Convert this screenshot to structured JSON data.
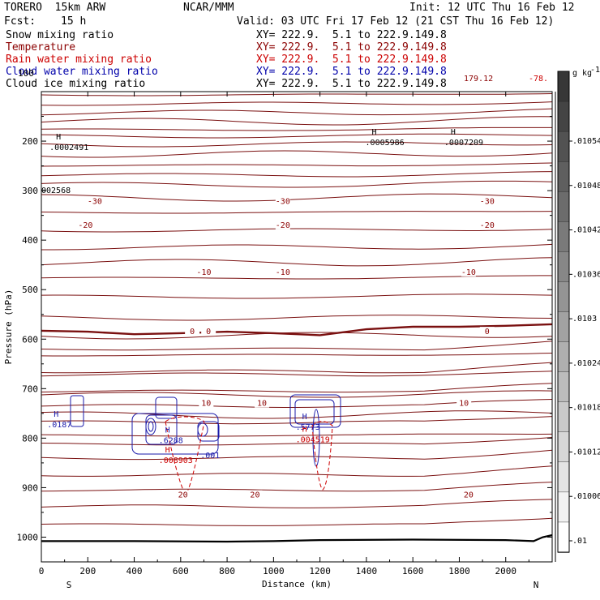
{
  "header": {
    "model": "TORERO  15km ARW",
    "org": "NCAR/MMM",
    "init": "Init: 12 UTC Thu 16 Feb 12",
    "fcst_label": "Fcst:",
    "fcst_value": "15 h",
    "valid": "Valid: 03 UTC Fri 17 Feb 12 (21 CST Thu 16 Feb 12)"
  },
  "fields": [
    {
      "name": "Snow mixing ratio",
      "color": "#000000",
      "xy": "XY= 222.9.  5.1 to 222.9.149.8"
    },
    {
      "name": "Temperature",
      "color": "#8b0000",
      "xy": "XY= 222.9.  5.1 to 222.9.149.8"
    },
    {
      "name": "Rain water mixing ratio",
      "color": "#cc0000",
      "xy": "XY= 222.9.  5.1 to 222.9.149.8"
    },
    {
      "name": "Cloud water mixing ratio",
      "color": "#0000aa",
      "xy": "XY= 222.9.  5.1 to 222.9.149.8"
    },
    {
      "name": "Cloud ice mixing ratio",
      "color": "#000000",
      "xy": "XY= 222.9.  5.1 to 222.9.149.8"
    }
  ],
  "chart_data": {
    "type": "cross-section contour",
    "xlabel": "Distance (km)",
    "ylabel": "Pressure (hPa)",
    "xlim": [
      0,
      2200
    ],
    "ylim": [
      1050,
      100
    ],
    "x_ticks": [
      "0",
      "200",
      "400",
      "600",
      "800",
      "1000",
      "1200",
      "1400",
      "1600",
      "1800",
      "2000"
    ],
    "x_tick_values": [
      0,
      200,
      400,
      600,
      800,
      1000,
      1200,
      1400,
      1600,
      1800,
      2000
    ],
    "y_ticks": [
      "200",
      "300",
      "400",
      "500",
      "600",
      "700",
      "800",
      "900",
      "1000"
    ],
    "y_tick_values": [
      200,
      300,
      400,
      500,
      600,
      700,
      800,
      900,
      1000
    ],
    "y_partial_ticks": [
      "100"
    ],
    "left_end": "S",
    "right_end": "N",
    "colorbar": {
      "unit": "g kg",
      "unit_sup": "-1",
      "labels": [
        ".01054",
        ".01048",
        ".01042",
        ".01036",
        ".0103",
        ".01024",
        ".01018",
        ".01012",
        ".01006",
        ".01"
      ]
    },
    "temperature_contours": [
      {
        "label": "-30",
        "pressure": 322,
        "positions_km": [
          230,
          1040,
          1920
        ]
      },
      {
        "label": "-20",
        "pressure": 370,
        "positions_km": [
          190,
          1040,
          1920
        ]
      },
      {
        "label": "-10",
        "pressure": 465,
        "positions_km": [
          700,
          1040,
          1840
        ]
      },
      {
        "label": "0",
        "pressure": 585,
        "positions_km": [
          650,
          720,
          1920
        ]
      },
      {
        "label": "10",
        "pressure": 730,
        "positions_km": [
          710,
          950,
          1820
        ]
      },
      {
        "label": "20",
        "pressure": 915,
        "positions_km": [
          610,
          920,
          1840
        ]
      }
    ],
    "top_labels": [
      "179.12",
      "-78."
    ],
    "extrema": [
      {
        "mark": "H",
        "value": ".0002491",
        "color": "#000000",
        "km": 140,
        "pressure": 210
      },
      {
        "mark": "H",
        "value": ".0005986",
        "color": "#000000",
        "km": 1500,
        "pressure": 200
      },
      {
        "mark": "H",
        "value": ".0007209",
        "color": "#000000",
        "km": 1840,
        "pressure": 200
      },
      {
        "mark": "H",
        "value": ".0187",
        "color": "#1a1aaa",
        "km": 130,
        "pressure": 770
      },
      {
        "mark": "H",
        "value": ".6288",
        "color": "#1a1aaa",
        "km": 610,
        "pressure": 802
      },
      {
        "mark": "",
        "value": ".001",
        "color": "#1a1aaa",
        "km": 790,
        "pressure": 832
      },
      {
        "mark": "H",
        "value": ".5773",
        "color": "#1a1aaa",
        "km": 1200,
        "pressure": 775
      },
      {
        "mark": "H",
        "value": ".008903",
        "color": "#cc0000",
        "km": 610,
        "pressure": 842
      },
      {
        "mark": "H",
        "value": ".004519",
        "color": "#cc0000",
        "km": 1200,
        "pressure": 800
      }
    ],
    "left_edge_label": "002568"
  }
}
